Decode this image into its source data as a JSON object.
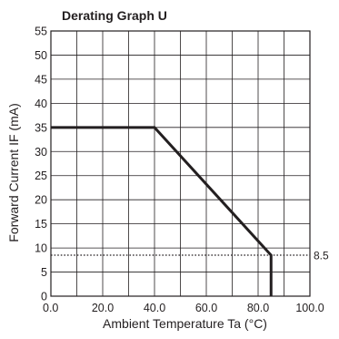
{
  "chart_data": {
    "type": "line",
    "title": "Derating Graph U",
    "xlabel": "Ambient Temperature Ta (°C)",
    "ylabel": "Forward Current IF (mA)",
    "xlim": [
      0,
      100
    ],
    "ylim": [
      0,
      55
    ],
    "x_ticks": [
      0,
      10,
      20,
      30,
      40,
      50,
      60,
      70,
      80,
      90,
      100
    ],
    "x_tick_labels": [
      "0.0",
      "",
      "20.0",
      "",
      "40.0",
      "",
      "60.0",
      "",
      "80.0",
      "",
      "100.0"
    ],
    "y_ticks": [
      0,
      5,
      10,
      15,
      20,
      25,
      30,
      35,
      40,
      45,
      50,
      55
    ],
    "y_tick_labels": [
      "0",
      "5",
      "10",
      "15",
      "20",
      "25",
      "30",
      "35",
      "40",
      "45",
      "50",
      "55"
    ],
    "grid": true,
    "series": [
      {
        "x": [
          0,
          40,
          85,
          85
        ],
        "y": [
          35,
          35,
          8.5,
          0
        ],
        "color": "#231f20"
      }
    ],
    "reference_lines": [
      {
        "orientation": "horizontal",
        "y": 8.5,
        "style": "dotted",
        "label": "8.5"
      }
    ]
  }
}
